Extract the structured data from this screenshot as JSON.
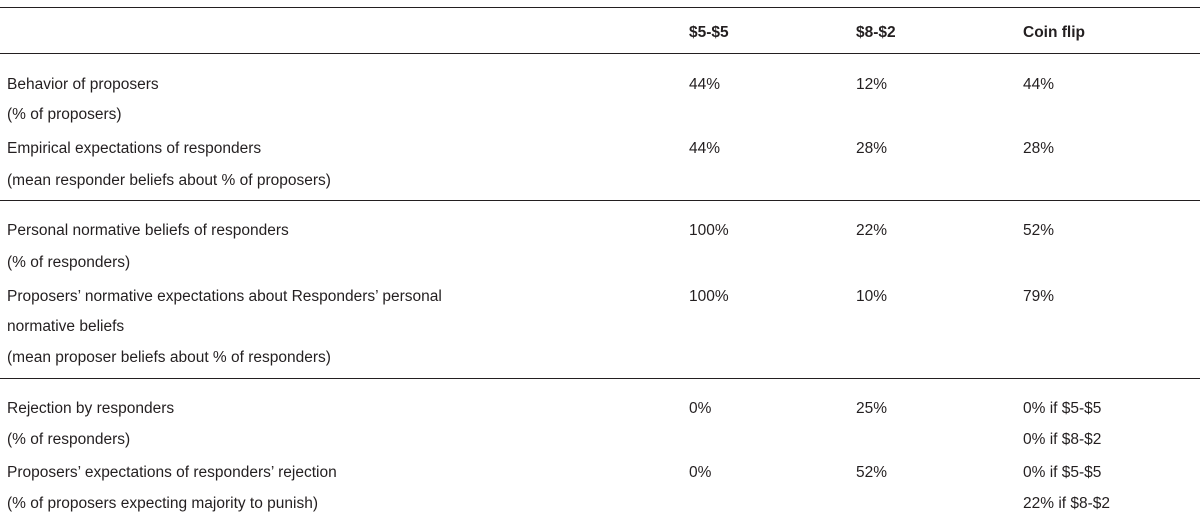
{
  "header": {
    "columns": [
      "",
      "$5-$5",
      "$8-$2",
      "Coin flip"
    ]
  },
  "rows": [
    {
      "label_lines": [
        "Behavior of proposers",
        "(% of proposers)"
      ],
      "values": [
        [
          "44%"
        ],
        [
          "12%"
        ],
        [
          "44%"
        ]
      ]
    },
    {
      "label_lines": [
        "Empirical expectations of responders",
        "(mean responder beliefs about % of proposers)"
      ],
      "values": [
        [
          "44%"
        ],
        [
          "28%"
        ],
        [
          "28%"
        ]
      ]
    },
    {
      "label_lines": [
        "Personal normative beliefs of responders",
        "(% of responders)"
      ],
      "values": [
        [
          "100%"
        ],
        [
          "22%"
        ],
        [
          "52%"
        ]
      ]
    },
    {
      "label_lines": [
        "Proposers’ normative expectations about Responders’ personal",
        "normative beliefs",
        "(mean proposer beliefs about % of responders)"
      ],
      "values": [
        [
          "100%"
        ],
        [
          "10%"
        ],
        [
          "79%"
        ]
      ]
    },
    {
      "label_lines": [
        "Rejection by responders",
        "(% of responders)"
      ],
      "values": [
        [
          "0%"
        ],
        [
          "25%"
        ],
        [
          "0% if $5-$5",
          "0% if $8-$2"
        ]
      ]
    },
    {
      "label_lines": [
        "Proposers’ expectations of responders’ rejection",
        "(% of proposers expecting majority to punish)"
      ],
      "values": [
        [
          "0%"
        ],
        [
          "52%"
        ],
        [
          "0% if $5-$5",
          "22% if $8-$2"
        ]
      ]
    }
  ]
}
